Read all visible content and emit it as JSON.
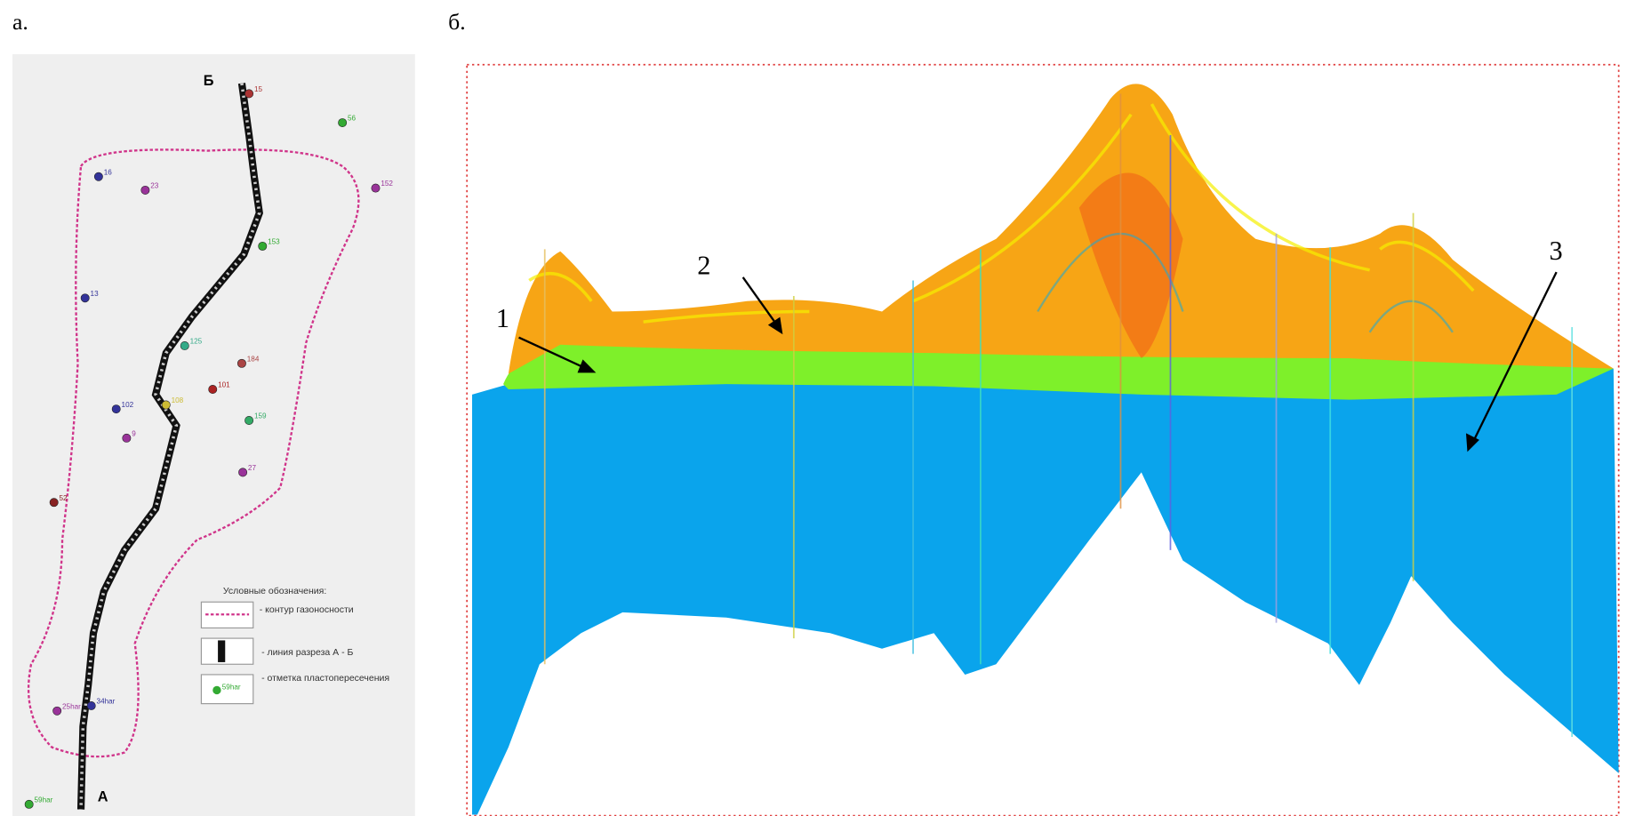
{
  "panels": {
    "left_label": "а.",
    "right_label": "б."
  },
  "map": {
    "north_end": "Б",
    "south_end": "А",
    "wells": [
      "15",
      "16",
      "23",
      "152",
      "13",
      "102",
      "101",
      "184",
      "125",
      "52",
      "27",
      "9",
      "56",
      "153",
      "108",
      "159",
      "34har",
      "25har",
      "59har"
    ],
    "legend": {
      "title": "Условные обозначения:",
      "contour": "- контур газоносности",
      "section_line": "- линия разреза А - Б",
      "well_mark": "- отметка пластопересечения",
      "well_sample": "59har"
    }
  },
  "section": {
    "labels": [
      "1",
      "2",
      "3"
    ]
  }
}
